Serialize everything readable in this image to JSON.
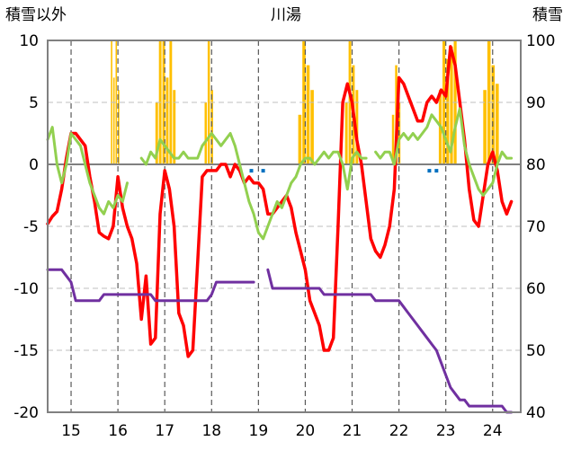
{
  "chart_data": {
    "type": "line",
    "title": "川湯",
    "ylabel": "積雪以外",
    "y2label": "積雪",
    "ylim": [
      -20,
      10
    ],
    "y2lim": [
      40,
      100
    ],
    "xlim": [
      14.5,
      24.6
    ],
    "yticks": [
      10,
      5,
      0,
      -5,
      -10,
      -15,
      -20
    ],
    "ytick_labels": [
      "10",
      "5",
      "0",
      "-5",
      "-10",
      "-15",
      "-20"
    ],
    "y2ticks": [
      100,
      90,
      80,
      70,
      60,
      50,
      40
    ],
    "y2tick_labels": [
      "100",
      "90",
      "80",
      "70",
      "60",
      "50",
      "40"
    ],
    "xticks": [
      15,
      16,
      17,
      18,
      19,
      20,
      21,
      22,
      23,
      24
    ],
    "xtick_labels": [
      "15",
      "16",
      "17",
      "18",
      "19",
      "20",
      "21",
      "22",
      "23",
      "24"
    ],
    "grid": true,
    "colors": {
      "red": "#ff0000",
      "green": "#92d050",
      "purple": "#7030a0",
      "snow": "#ffc000",
      "blue": "#0070c0",
      "frame": "#808080"
    },
    "series": [
      {
        "color": "red",
        "axis": "left",
        "x": [
          14.5,
          14.6,
          14.7,
          14.8,
          14.9,
          15.0,
          15.1,
          15.2,
          15.3,
          15.4,
          15.5,
          15.6,
          15.7,
          15.8,
          15.9,
          16.0,
          16.1,
          16.2,
          16.3,
          16.4,
          16.5,
          16.6,
          16.7,
          16.8,
          16.9,
          17.0,
          17.1,
          17.2,
          17.3,
          17.4,
          17.5,
          17.6,
          17.7,
          17.8,
          17.9,
          18.0,
          18.1,
          18.2,
          18.3,
          18.4,
          18.5,
          18.6,
          18.7,
          18.8,
          18.9,
          19.0,
          19.1,
          19.2,
          19.3,
          19.4,
          19.5,
          19.6,
          19.7,
          19.8,
          19.9,
          20.0,
          20.1,
          20.2,
          20.3,
          20.4,
          20.5,
          20.6,
          20.7,
          20.8,
          20.9,
          21.0,
          21.1,
          21.2,
          21.3,
          21.4,
          21.5,
          21.6,
          21.7,
          21.8,
          21.9,
          22.0,
          22.1,
          22.2,
          22.3,
          22.4,
          22.5,
          22.6,
          22.7,
          22.8,
          22.9,
          23.0,
          23.1,
          23.2,
          23.3,
          23.4,
          23.5,
          23.6,
          23.7,
          23.8,
          23.9,
          24.0,
          24.1,
          24.2,
          24.3,
          24.4
        ],
        "y": [
          -4.8,
          -4.2,
          -3.8,
          -2.0,
          0.5,
          2.5,
          2.5,
          2.0,
          1.5,
          -1.0,
          -3.0,
          -5.5,
          -5.8,
          -6.0,
          -5.0,
          -1.0,
          -3.5,
          -5.0,
          -6.0,
          -8.0,
          -12.5,
          -9.0,
          -14.5,
          -14.0,
          -4.0,
          -0.5,
          -2.0,
          -5.0,
          -12.0,
          -13.0,
          -15.5,
          -15.0,
          -8.0,
          -1.0,
          -0.5,
          -0.5,
          -0.5,
          0.0,
          0.0,
          -1.0,
          0.0,
          -0.5,
          -1.5,
          -1.0,
          -1.5,
          -1.5,
          -2.0,
          -4.0,
          -4.0,
          -3.5,
          -3.0,
          -2.5,
          -3.5,
          -5.5,
          -7.0,
          -8.5,
          -11.0,
          -12.0,
          -13.0,
          -15.0,
          -15.0,
          -14.0,
          -5.0,
          5.0,
          6.5,
          5.0,
          2.0,
          0.0,
          -3.0,
          -6.0,
          -7.0,
          -7.5,
          -6.5,
          -5.0,
          -2.0,
          7.0,
          6.5,
          5.5,
          4.5,
          3.5,
          3.5,
          5.0,
          5.5,
          5.0,
          6.0,
          5.5,
          9.5,
          8.0,
          5.0,
          2.0,
          -2.0,
          -4.5,
          -5.0,
          -2.5,
          0.0,
          1.0,
          -0.5,
          -3.0,
          -4.0,
          -3.0
        ]
      },
      {
        "color": "green",
        "axis": "left",
        "x": [
          14.5,
          14.6,
          14.7,
          14.8,
          14.9,
          15.0,
          15.1,
          15.2,
          15.3,
          15.4,
          15.5,
          15.6,
          15.7,
          15.8,
          15.9,
          16.0,
          16.1,
          16.2,
          16.3,
          16.4,
          16.5,
          16.6,
          16.7,
          16.8,
          16.9,
          17.0,
          17.1,
          17.2,
          17.3,
          17.4,
          17.5,
          17.6,
          17.7,
          17.8,
          17.9,
          18.0,
          18.1,
          18.2,
          18.3,
          18.4,
          18.5,
          18.6,
          18.7,
          18.8,
          18.9,
          19.0,
          19.1,
          19.2,
          19.3,
          19.4,
          19.5,
          19.6,
          19.7,
          19.8,
          19.9,
          20.0,
          20.1,
          20.2,
          20.3,
          20.4,
          20.5,
          20.6,
          20.7,
          20.8,
          20.9,
          21.0,
          21.1,
          21.2,
          21.3,
          21.4,
          21.5,
          21.6,
          21.7,
          21.8,
          21.9,
          22.0,
          22.1,
          22.2,
          22.3,
          22.4,
          22.5,
          22.6,
          22.7,
          22.8,
          22.9,
          23.0,
          23.1,
          23.2,
          23.3,
          23.4,
          23.5,
          23.6,
          23.7,
          23.8,
          23.9,
          24.0,
          24.1,
          24.2,
          24.3,
          24.4
        ],
        "y": [
          2.0,
          3.0,
          0.0,
          -1.5,
          0.0,
          2.5,
          2.0,
          1.5,
          0.0,
          -1.5,
          -2.5,
          -3.5,
          -4.0,
          -3.0,
          -3.5,
          -2.5,
          -3.0,
          -1.5,
          null,
          null,
          0.5,
          0.0,
          1.0,
          0.5,
          2.0,
          1.5,
          1.0,
          0.5,
          0.5,
          1.0,
          0.5,
          0.5,
          0.5,
          1.5,
          2.0,
          2.5,
          2.0,
          1.5,
          2.0,
          2.5,
          1.5,
          0.0,
          -1.5,
          -3.0,
          -4.0,
          -5.5,
          -6.0,
          -5.0,
          -4.0,
          -3.0,
          -3.5,
          -2.5,
          -1.5,
          -1.0,
          0.0,
          0.5,
          0.5,
          0.0,
          0.5,
          1.0,
          0.5,
          1.0,
          1.0,
          0.0,
          -2.0,
          0.5,
          1.0,
          0.5,
          0.5,
          null,
          1.0,
          0.5,
          1.0,
          1.0,
          0.0,
          2.0,
          2.5,
          2.0,
          2.5,
          2.0,
          2.5,
          3.0,
          4.0,
          3.5,
          3.0,
          2.0,
          1.0,
          3.0,
          4.5,
          1.5,
          0.0,
          -1.0,
          -2.0,
          -2.5,
          -2.0,
          -1.5,
          0.0,
          1.0,
          0.5,
          0.5
        ]
      },
      {
        "color": "purple",
        "axis": "right",
        "x": [
          14.5,
          14.6,
          14.7,
          14.8,
          14.9,
          15.0,
          15.1,
          15.2,
          15.3,
          15.4,
          15.5,
          15.6,
          15.7,
          15.8,
          15.9,
          16.0,
          16.1,
          16.2,
          16.3,
          16.4,
          16.5,
          16.6,
          16.7,
          16.8,
          16.9,
          17.0,
          17.1,
          17.2,
          17.3,
          17.4,
          17.5,
          17.6,
          17.7,
          17.8,
          17.9,
          18.0,
          18.1,
          18.2,
          18.3,
          18.4,
          18.5,
          18.6,
          18.7,
          18.8,
          18.9,
          19.0,
          19.1,
          19.2,
          19.3,
          19.4,
          19.5,
          19.6,
          19.7,
          19.8,
          19.9,
          20.0,
          20.1,
          20.2,
          20.3,
          20.4,
          20.5,
          20.6,
          20.7,
          20.8,
          20.9,
          21.0,
          21.1,
          21.2,
          21.3,
          21.4,
          21.5,
          21.6,
          21.7,
          21.8,
          21.9,
          22.0,
          22.1,
          22.2,
          22.3,
          22.4,
          22.5,
          22.6,
          22.7,
          22.8,
          22.9,
          23.0,
          23.1,
          23.2,
          23.3,
          23.4,
          23.5,
          23.6,
          23.7,
          23.8,
          23.9,
          24.0,
          24.1,
          24.2,
          24.3,
          24.4
        ],
        "y": [
          63,
          63,
          63,
          63,
          62,
          61,
          58,
          58,
          58,
          58,
          58,
          58,
          59,
          59,
          59,
          59,
          59,
          59,
          59,
          59,
          59,
          59,
          59,
          58,
          58,
          58,
          58,
          58,
          58,
          58,
          58,
          58,
          58,
          58,
          58,
          59,
          61,
          61,
          61,
          61,
          61,
          61,
          61,
          61,
          61,
          null,
          null,
          63,
          60,
          60,
          60,
          60,
          60,
          60,
          60,
          60,
          60,
          60,
          60,
          59,
          59,
          59,
          59,
          59,
          59,
          59,
          59,
          59,
          59,
          59,
          58,
          58,
          58,
          58,
          58,
          58,
          57,
          56,
          55,
          54,
          53,
          52,
          51,
          50,
          48,
          46,
          44,
          43,
          42,
          42,
          41,
          41,
          41,
          41,
          41,
          41,
          41,
          41,
          40,
          40
        ]
      }
    ],
    "snow_bars": [
      {
        "start": 15.8,
        "end": 16.05,
        "peaks": [
          75,
          100,
          94,
          100,
          92
        ]
      },
      {
        "start": 16.8,
        "end": 17.25,
        "peaks": [
          90,
          100,
          100,
          94,
          100,
          92
        ]
      },
      {
        "start": 17.85,
        "end": 18.05,
        "peaks": [
          90,
          100,
          92
        ]
      },
      {
        "start": 19.85,
        "end": 20.2,
        "peaks": [
          88,
          100,
          96,
          92
        ]
      },
      {
        "start": 20.85,
        "end": 21.15,
        "peaks": [
          90,
          100,
          96,
          92
        ]
      },
      {
        "start": 21.85,
        "end": 22.05,
        "peaks": [
          88,
          96,
          90
        ]
      },
      {
        "start": 22.85,
        "end": 23.25,
        "peaks": [
          92,
          100,
          97,
          99,
          100
        ]
      },
      {
        "start": 23.8,
        "end": 24.15,
        "peaks": [
          92,
          100,
          96,
          93
        ]
      }
    ],
    "blue_marks": [
      {
        "x": 18.85,
        "y": -0.3
      },
      {
        "x": 19.1,
        "y": -0.3
      },
      {
        "x": 22.65,
        "y": -0.3
      },
      {
        "x": 22.8,
        "y": -0.3
      }
    ]
  }
}
